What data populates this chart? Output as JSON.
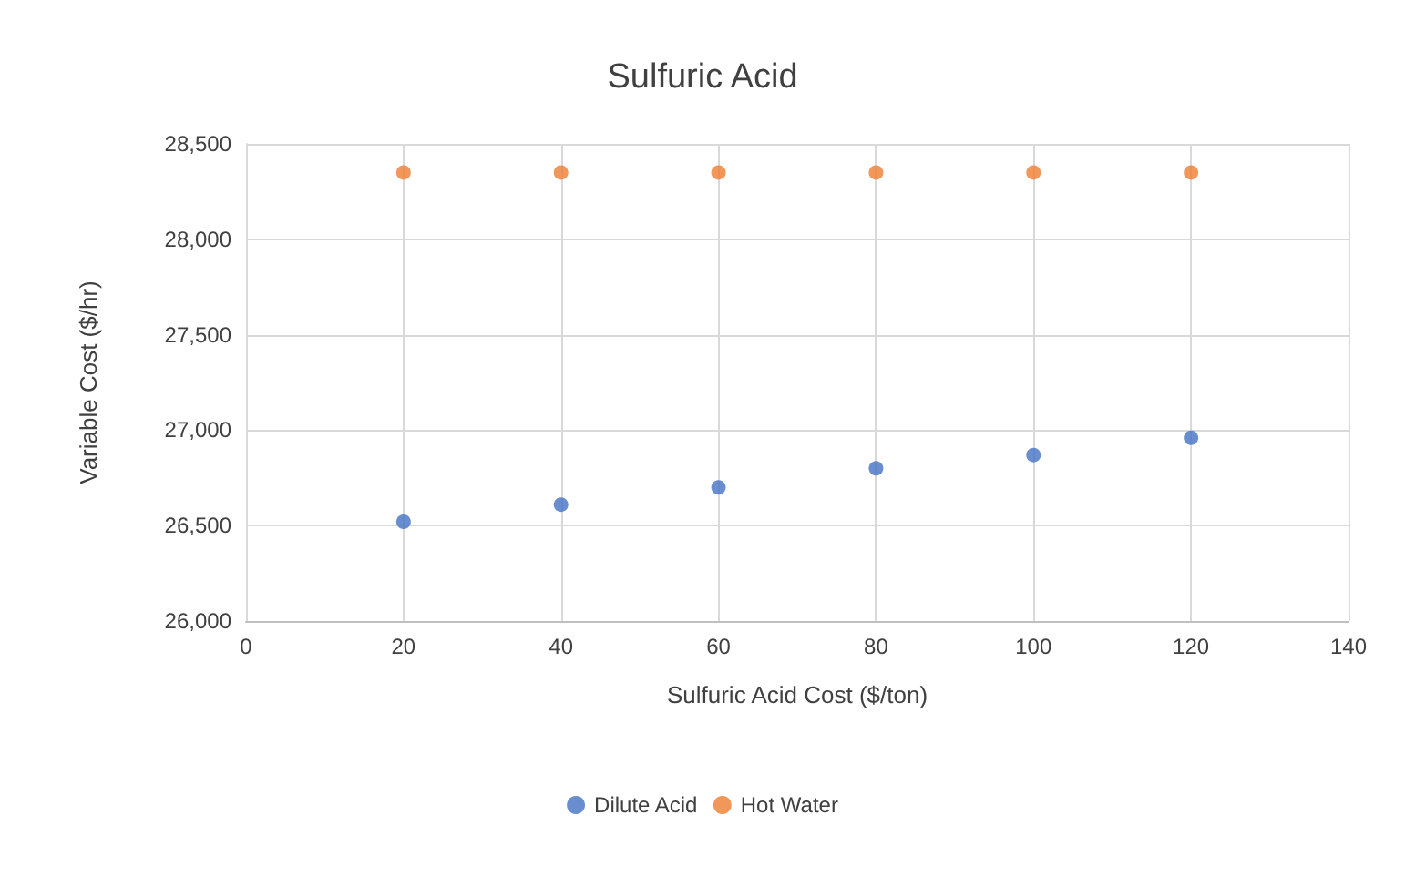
{
  "chart_data": {
    "type": "scatter",
    "title": "Sulfuric Acid",
    "xlabel": "Sulfuric Acid Cost ($/ton)",
    "ylabel": "Variable Cost ($/hr)",
    "series": [
      {
        "name": "Dilute Acid",
        "color": "#4472c4",
        "x": [
          20,
          40,
          60,
          80,
          100,
          120
        ],
        "values": [
          26520,
          26610,
          26700,
          26800,
          26870,
          26960
        ]
      },
      {
        "name": "Hot Water",
        "color": "#ed7d31",
        "x": [
          20,
          40,
          60,
          80,
          100,
          120
        ],
        "values": [
          28350,
          28350,
          28350,
          28350,
          28350,
          28350
        ]
      }
    ],
    "xlim": [
      0,
      140
    ],
    "xticks": [
      0,
      20,
      40,
      60,
      80,
      100,
      120,
      140
    ],
    "ylim": [
      26000,
      28500
    ],
    "yticks": [
      {
        "value": 26000,
        "label": "26,000"
      },
      {
        "value": 26500,
        "label": "26,500"
      },
      {
        "value": 27000,
        "label": "27,000"
      },
      {
        "value": 27500,
        "label": "27,500"
      },
      {
        "value": 28000,
        "label": "28,000"
      },
      {
        "value": 28500,
        "label": "28,500"
      }
    ],
    "grid": true,
    "legend": "bottom",
    "marker": "circle"
  }
}
